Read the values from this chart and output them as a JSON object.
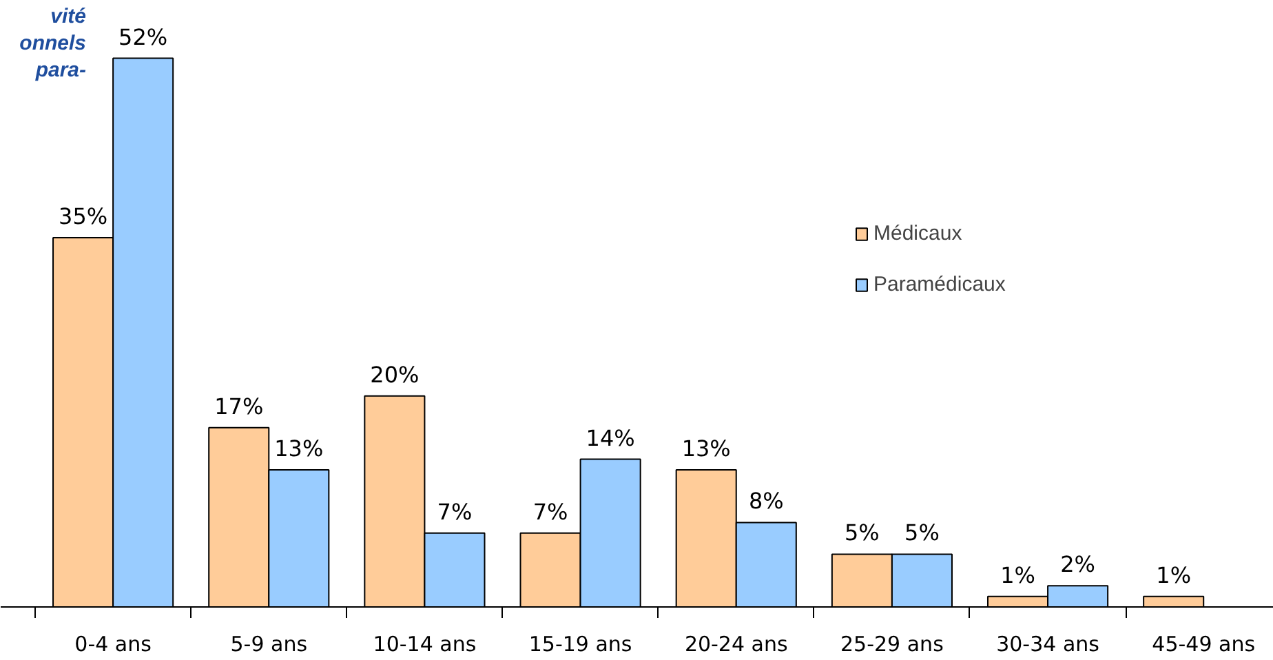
{
  "chart_data": {
    "type": "bar",
    "title": "vité\nonnels\npara-",
    "categories": [
      "0-4 ans",
      "5-9 ans",
      "10-14 ans",
      "15-19 ans",
      "20-24 ans",
      "25-29 ans",
      "30-34 ans",
      "45-49 ans"
    ],
    "series": [
      {
        "name": "Médicaux",
        "color": "#ffcc99",
        "values": [
          35,
          17,
          20,
          7,
          13,
          5,
          1,
          1
        ],
        "value_labels": [
          "35%",
          "17%",
          "20%",
          "7%",
          "13%",
          "5%",
          "1%",
          "1%"
        ]
      },
      {
        "name": "Paramédicaux",
        "color": "#99ccff",
        "values": [
          52,
          13,
          7,
          14,
          8,
          5,
          2,
          null
        ],
        "value_labels": [
          "52%",
          "13%",
          "7%",
          "14%",
          "8%",
          "5%",
          "2%",
          null
        ]
      }
    ],
    "legend": "right",
    "grid": false
  }
}
